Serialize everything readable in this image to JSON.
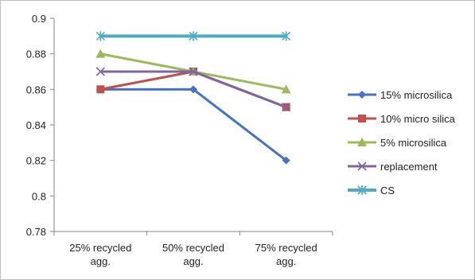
{
  "chart_data": {
    "type": "line",
    "categories": [
      [
        "25% recycled",
        "agg."
      ],
      [
        "50% recycled",
        "agg."
      ],
      [
        "75% recycled",
        "agg."
      ]
    ],
    "ylim": [
      0.78,
      0.9
    ],
    "yticks": [
      0.78,
      0.8,
      0.82,
      0.84,
      0.86,
      0.88,
      0.9
    ],
    "ytick_labels": [
      "0.78",
      "0.8",
      "0.82",
      "0.84",
      "0.86",
      "0.88",
      "0.9"
    ],
    "legend_position": "right",
    "grid": false,
    "series": [
      {
        "name": "15% microsilica",
        "color": "#4472C4",
        "marker": "diamond",
        "values": [
          0.86,
          0.86,
          0.82
        ]
      },
      {
        "name": "10% micro silica",
        "color": "#C0504D",
        "marker": "square",
        "values": [
          0.86,
          0.87,
          0.85
        ]
      },
      {
        "name": "5% microsilica",
        "color": "#9BBB59",
        "marker": "triangle",
        "values": [
          0.88,
          0.87,
          0.86
        ]
      },
      {
        "name": "replacement",
        "color": "#8064A2",
        "marker": "x",
        "values": [
          0.87,
          0.87,
          0.85
        ]
      },
      {
        "name": "CS",
        "color": "#4BACC6",
        "marker": "asterisk",
        "values": [
          0.89,
          0.89,
          0.89
        ]
      }
    ]
  }
}
